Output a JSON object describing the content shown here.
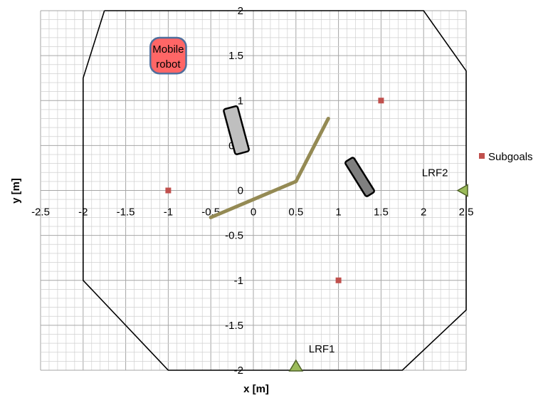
{
  "chart_data": {
    "type": "scatter",
    "xlabel": "x [m]",
    "ylabel": "y [m]",
    "xlim": [
      -2.5,
      2.5
    ],
    "ylim": [
      -2,
      2
    ],
    "xticks": [
      "-2.5",
      "-2",
      "-1.5",
      "-1",
      "-0.5",
      "0",
      "0.5",
      "1",
      "1.5",
      "2",
      "2.5"
    ],
    "yticks": [
      "2",
      "1.5",
      "1",
      "0.5",
      "0",
      "-0.5",
      "-1",
      "-1.5",
      "-2"
    ],
    "grid": true,
    "series": [
      {
        "name": "Subgoals",
        "color": "#c0504d",
        "marker": "square",
        "points": [
          {
            "x": -1,
            "y": 0
          },
          {
            "x": 1.5,
            "y": 1
          },
          {
            "x": 1,
            "y": -1
          }
        ]
      }
    ],
    "boundary": [
      [
        -1.75,
        2
      ],
      [
        2,
        2
      ],
      [
        2.5,
        1.33
      ],
      [
        2.5,
        -1.33
      ],
      [
        1.75,
        -2
      ],
      [
        -1,
        -2
      ],
      [
        -2,
        -1
      ],
      [
        -2,
        1.25
      ],
      [
        -1.75,
        2
      ]
    ],
    "path": [
      [
        -0.5,
        -0.3
      ],
      [
        0.5,
        0.1
      ],
      [
        0.88,
        0.8
      ]
    ],
    "path_color": "#948a54",
    "obstacles": [
      {
        "center": [
          -0.2,
          0.67
        ],
        "length": 0.55,
        "width": 0.17,
        "angle_deg": 75,
        "fill": "#bfbfbf"
      },
      {
        "center": [
          1.25,
          0.15
        ],
        "length": 0.48,
        "width": 0.12,
        "angle_deg": 58,
        "fill": "#7f7f7f"
      }
    ],
    "sensors": [
      {
        "label": "LRF1",
        "x": 0.5,
        "y": -2,
        "orientation": "up",
        "label_dx": 0.15,
        "label_dy": 0.2
      },
      {
        "label": "LRF2",
        "x": 2.5,
        "y": 0,
        "orientation": "left",
        "label_dx": -0.52,
        "label_dy": 0.16
      }
    ],
    "sensor_color": "#9bbb59",
    "robot": {
      "label_lines": [
        "Mobile",
        "robot"
      ],
      "x": -1,
      "y": 1.5,
      "size": 0.42,
      "fill": "#ff6666",
      "stroke": "#4f6e9c"
    },
    "legend": {
      "position": "right",
      "label": "Subgoals"
    }
  }
}
